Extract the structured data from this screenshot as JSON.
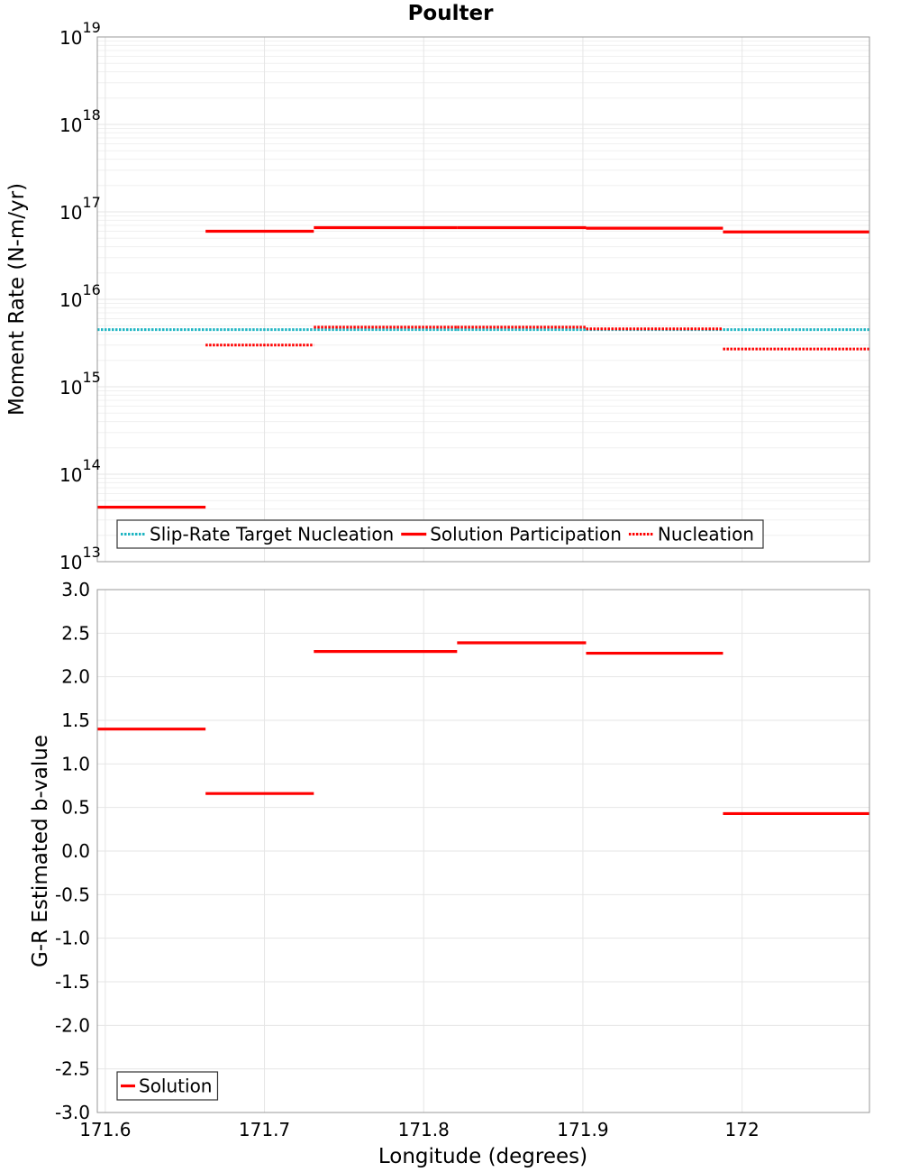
{
  "chart_data": [
    {
      "type": "line",
      "title": "Poulter",
      "xlabel": "Longitude (degrees)",
      "ylabel": "Moment Rate (N-m/yr)",
      "yscale": "log",
      "xlim": [
        171.595,
        172.08
      ],
      "ylim": [
        10000000000000.0,
        1e+19
      ],
      "ytick_labels": [
        {
          "base": "10",
          "exp": "13",
          "value": 10000000000000.0
        },
        {
          "base": "10",
          "exp": "14",
          "value": 100000000000000.0
        },
        {
          "base": "10",
          "exp": "15",
          "value": 1000000000000000.0
        },
        {
          "base": "10",
          "exp": "16",
          "value": 1e+16
        },
        {
          "base": "10",
          "exp": "17",
          "value": 1e+17
        },
        {
          "base": "10",
          "exp": "18",
          "value": 1e+18
        },
        {
          "base": "10",
          "exp": "19",
          "value": 1e+19
        }
      ],
      "grid": true,
      "legend_position": "bottom-left",
      "series": [
        {
          "name": "Slip-Rate Target Nucleation",
          "style": "dotted",
          "color": "#1fb5c2",
          "segments": [
            {
              "x0": 171.595,
              "x1": 171.663,
              "y": 4500000000000000.0
            },
            {
              "x0": 171.663,
              "x1": 171.731,
              "y": 4500000000000000.0
            },
            {
              "x0": 171.731,
              "x1": 171.821,
              "y": 4500000000000000.0
            },
            {
              "x0": 171.821,
              "x1": 171.902,
              "y": 4500000000000000.0
            },
            {
              "x0": 171.902,
              "x1": 171.988,
              "y": 4500000000000000.0
            },
            {
              "x0": 171.988,
              "x1": 172.08,
              "y": 4500000000000000.0
            }
          ]
        },
        {
          "name": "Solution Participation",
          "style": "solid",
          "color": "#ff0000",
          "segments": [
            {
              "x0": 171.595,
              "x1": 171.663,
              "y": 42000000000000.0
            },
            {
              "x0": 171.663,
              "x1": 171.731,
              "y": 6e+16
            },
            {
              "x0": 171.731,
              "x1": 171.821,
              "y": 6.6e+16
            },
            {
              "x0": 171.821,
              "x1": 171.902,
              "y": 6.6e+16
            },
            {
              "x0": 171.902,
              "x1": 171.988,
              "y": 6.5e+16
            },
            {
              "x0": 171.988,
              "x1": 172.08,
              "y": 5.9e+16
            }
          ]
        },
        {
          "name": "Nucleation",
          "style": "dotted",
          "color": "#ff0000",
          "segments": [
            {
              "x0": 171.663,
              "x1": 171.731,
              "y": 3000000000000000.0
            },
            {
              "x0": 171.731,
              "x1": 171.821,
              "y": 4800000000000000.0
            },
            {
              "x0": 171.821,
              "x1": 171.902,
              "y": 4800000000000000.0
            },
            {
              "x0": 171.902,
              "x1": 171.988,
              "y": 4600000000000000.0
            },
            {
              "x0": 171.988,
              "x1": 172.08,
              "y": 2700000000000000.0
            }
          ]
        }
      ]
    },
    {
      "type": "line",
      "title": "",
      "xlabel": "Longitude (degrees)",
      "ylabel": "G-R Estimated b-value",
      "xlim": [
        171.595,
        172.08
      ],
      "ylim": [
        -3.0,
        3.0
      ],
      "x_ticks": [
        171.6,
        171.7,
        171.8,
        171.9,
        172
      ],
      "x_tick_labels": [
        "171.6",
        "171.7",
        "171.8",
        "171.9",
        "172"
      ],
      "y_ticks": [
        -3.0,
        -2.5,
        -2.0,
        -1.5,
        -1.0,
        -0.5,
        0.0,
        0.5,
        1.0,
        1.5,
        2.0,
        2.5,
        3.0
      ],
      "y_tick_labels": [
        "-3.0",
        "-2.5",
        "-2.0",
        "-1.5",
        "-1.0",
        "-0.5",
        "0.0",
        "0.5",
        "1.0",
        "1.5",
        "2.0",
        "2.5",
        "3.0"
      ],
      "grid": true,
      "legend_position": "bottom-left",
      "series": [
        {
          "name": "Solution",
          "style": "solid",
          "color": "#ff0000",
          "segments": [
            {
              "x0": 171.595,
              "x1": 171.663,
              "y": 1.4
            },
            {
              "x0": 171.663,
              "x1": 171.731,
              "y": 0.66
            },
            {
              "x0": 171.731,
              "x1": 171.821,
              "y": 2.29
            },
            {
              "x0": 171.821,
              "x1": 171.902,
              "y": 2.39
            },
            {
              "x0": 171.902,
              "x1": 171.988,
              "y": 2.27
            },
            {
              "x0": 171.988,
              "x1": 172.08,
              "y": 0.43
            }
          ]
        }
      ]
    }
  ]
}
